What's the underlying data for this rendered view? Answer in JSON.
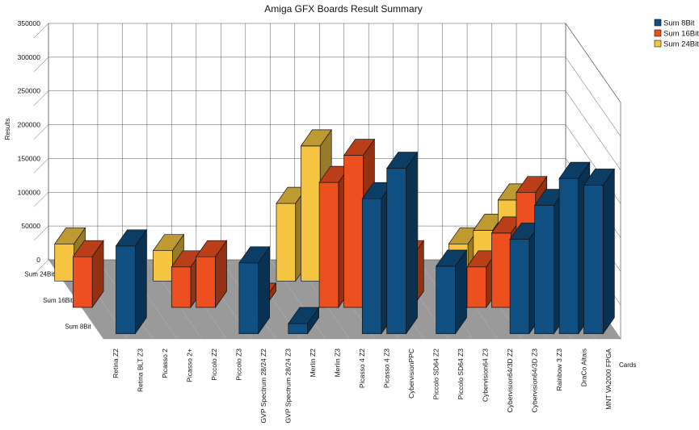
{
  "chart_data": {
    "type": "bar",
    "variant": "3d-grouped",
    "title": "Amiga GFX Boards Result Summary",
    "xlabel": "Cards",
    "ylabel": "Results",
    "ylim": [
      0,
      350000
    ],
    "yticks": [
      0,
      50000,
      100000,
      150000,
      200000,
      250000,
      300000,
      350000
    ],
    "grid": true,
    "legend_position": "top-right",
    "depth_labels": [
      "Sum 24Bit",
      "Sum 16Bit",
      "Sum 8Bit"
    ],
    "categories": [
      "Retina Z2",
      "Retina BLT Z3",
      "Picasso 2",
      "Picasso 2+",
      "Piccolo Z2",
      "Piccolo Z3",
      "GVP Spectrum 28/24 Z2",
      "GVP Spectrum 28/24 Z3",
      "Merlin Z2",
      "Merlin Z3",
      "Picasso 4 Z2",
      "Picasso 4 Z3",
      "CybervisionPPC",
      "Piccolo SD64 Z2",
      "Piccolo SD64 Z3",
      "Cybervision64 Z3",
      "Cybervision64/3D Z2",
      "Cybervision64/3D Z3",
      "Rainbow 3 Z3",
      "DraCo Altais",
      "MNT VA2000 FPGA"
    ],
    "series": [
      {
        "name": "Sum 8Bit",
        "color": "#0f4f82",
        "values": [
          null,
          130000,
          null,
          null,
          null,
          null,
          105000,
          null,
          15000,
          null,
          null,
          200000,
          245000,
          null,
          100000,
          null,
          null,
          140000,
          190000,
          230000,
          220000
        ]
      },
      {
        "name": "Sum 16Bit",
        "color": "#ee4f1f",
        "values": [
          75000,
          null,
          null,
          null,
          60000,
          75000,
          null,
          12000,
          null,
          null,
          185000,
          225000,
          null,
          75000,
          null,
          null,
          60000,
          110000,
          170000,
          150000,
          null
        ]
      },
      {
        "name": "Sum 24Bit",
        "color": "#f5c542",
        "values": [
          55000,
          null,
          null,
          null,
          45000,
          7000,
          null,
          null,
          null,
          115000,
          200000,
          null,
          null,
          50000,
          null,
          null,
          55000,
          75000,
          120000,
          null,
          null
        ]
      }
    ]
  }
}
